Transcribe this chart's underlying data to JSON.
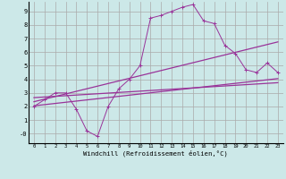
{
  "xlabel": "Windchill (Refroidissement éolien,°C)",
  "bg_color": "#cce8e8",
  "grid_color": "#aaaaaa",
  "line_color": "#993399",
  "xlim": [
    -0.5,
    23.5
  ],
  "ylim": [
    -0.7,
    9.7
  ],
  "xticks": [
    0,
    1,
    2,
    3,
    4,
    5,
    6,
    7,
    8,
    9,
    10,
    11,
    12,
    13,
    14,
    15,
    16,
    17,
    18,
    19,
    20,
    21,
    22,
    23
  ],
  "yticks": [
    0,
    1,
    2,
    3,
    4,
    5,
    6,
    7,
    8,
    9
  ],
  "ytick_labels": [
    "-0",
    "1",
    "2",
    "3",
    "4",
    "5",
    "6",
    "7",
    "8",
    "9"
  ],
  "data_line": [
    [
      0,
      2.0
    ],
    [
      1,
      2.5
    ],
    [
      2,
      3.0
    ],
    [
      3,
      3.0
    ],
    [
      4,
      1.8
    ],
    [
      5,
      0.2
    ],
    [
      6,
      -0.2
    ],
    [
      7,
      2.0
    ],
    [
      8,
      3.3
    ],
    [
      9,
      4.0
    ],
    [
      10,
      5.0
    ],
    [
      11,
      8.5
    ],
    [
      12,
      8.7
    ],
    [
      13,
      9.0
    ],
    [
      14,
      9.3
    ],
    [
      15,
      9.5
    ],
    [
      16,
      8.3
    ],
    [
      17,
      8.1
    ],
    [
      18,
      6.5
    ],
    [
      19,
      5.9
    ],
    [
      20,
      4.7
    ],
    [
      21,
      4.5
    ],
    [
      22,
      5.2
    ],
    [
      23,
      4.5
    ]
  ],
  "reg_line1": [
    [
      0,
      2.05
    ],
    [
      23,
      4.05
    ]
  ],
  "reg_line2": [
    [
      0,
      2.35
    ],
    [
      23,
      6.75
    ]
  ],
  "reg_line3": [
    [
      0,
      2.65
    ],
    [
      23,
      3.75
    ]
  ]
}
